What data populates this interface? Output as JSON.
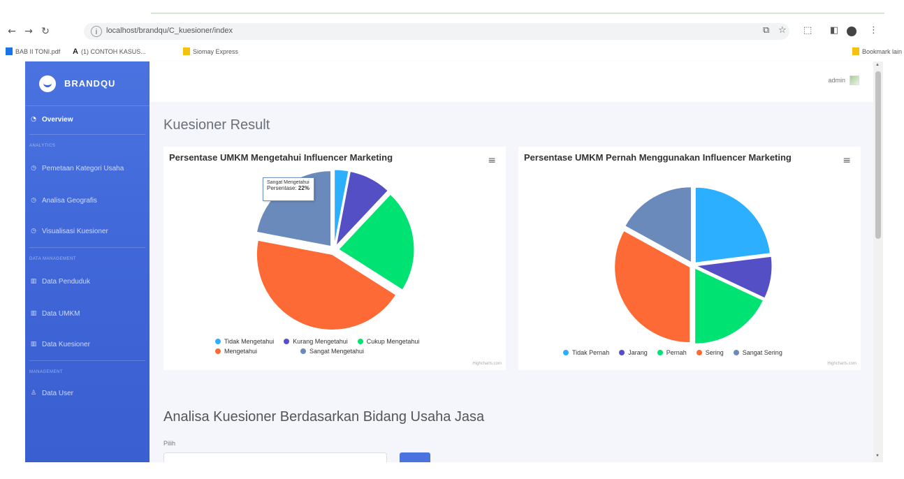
{
  "browser": {
    "url": "localhost/brandqu/C_kuesioner/index",
    "bookmarks": [
      {
        "label": "BAB II TONI.pdf",
        "color": "#1a73e8"
      },
      {
        "label": "(1) CONTOH KASUS...",
        "color": "#222222"
      },
      {
        "label": "Siomay Express",
        "color": "#f4c20d"
      }
    ],
    "bookmark_folder": "Bookmark lain"
  },
  "sidebar": {
    "brand": "BRANDQU",
    "overview": "Overview",
    "sections": [
      {
        "heading": "ANALYTICS",
        "items": [
          "Pemetaan Kategori Usaha",
          "Analisa Geografis",
          "Visualisasi Kuesioner"
        ]
      },
      {
        "heading": "DATA MANAGEMENT",
        "items": [
          "Data Penduduk",
          "Data UMKM",
          "Data Kuesioner"
        ]
      },
      {
        "heading": "MANAGEMENT",
        "items": [
          "Data User"
        ]
      }
    ]
  },
  "topbar": {
    "user": "admin"
  },
  "main": {
    "title": "Kuesioner Result",
    "section_title": "Analisa Kuesioner Berdasarkan Bidang Usaha Jasa",
    "pilih_label": "Pilih"
  },
  "tooltip": {
    "name": "Sangat Mengetahui",
    "series": "Persentase",
    "value": "22%"
  },
  "credits": "Highcharts.com",
  "chart_data": [
    {
      "type": "pie",
      "title": "Persentase UMKM Mengetahui Influencer Marketing",
      "series_name": "Persentase",
      "categories": [
        "Tidak Mengetahui",
        "Kurang Mengetahui",
        "Cukup Mengetahui",
        "Mengetahui",
        "Sangat Mengetahui"
      ],
      "values": [
        3,
        9,
        22,
        44,
        22
      ],
      "colors": [
        "#2caffe",
        "#544fc5",
        "#00e272",
        "#fe6a35",
        "#6b8abc"
      ],
      "legend": "bottom"
    },
    {
      "type": "pie",
      "title": "Persentase UMKM Pernah Menggunakan Influencer Marketing",
      "categories": [
        "Tidak Pernah",
        "Jarang",
        "Pernah",
        "Sering",
        "Sangat Sering"
      ],
      "values": [
        23,
        9,
        18,
        33,
        17
      ],
      "colors": [
        "#2caffe",
        "#544fc5",
        "#00e272",
        "#fe6a35",
        "#6b8abc"
      ],
      "legend": "bottom"
    }
  ]
}
